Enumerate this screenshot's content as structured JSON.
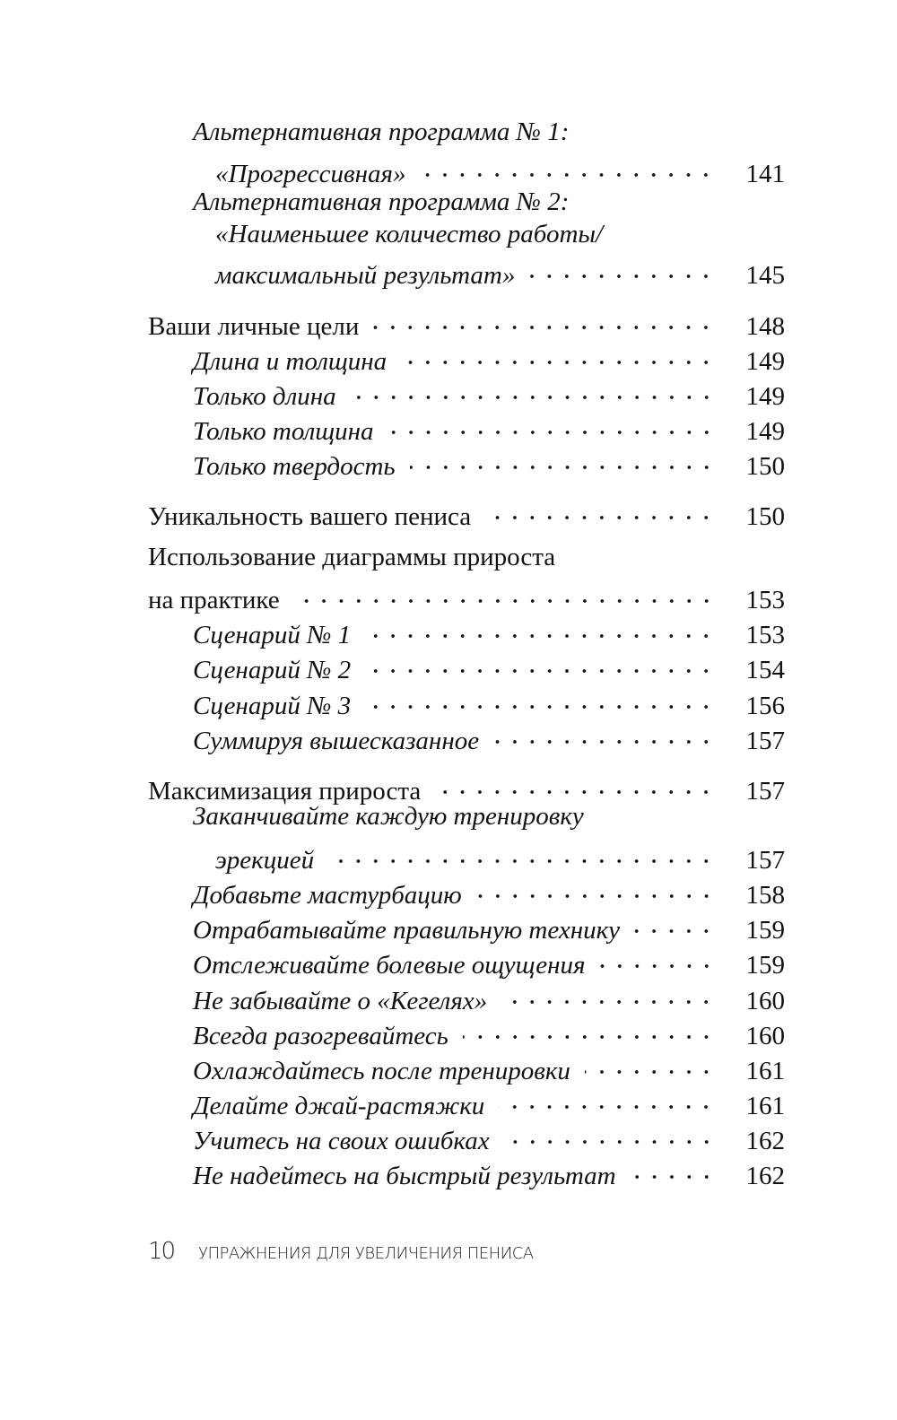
{
  "toc": [
    {
      "text": "Альтернативная программа № 1:",
      "level": 1
    },
    {
      "text": "«Прогрессивная»",
      "page": "141",
      "level": 2
    },
    {
      "text": "Альтернативная программа № 2:",
      "level": 1
    },
    {
      "text": "«Наименьшее количество работы/",
      "level": 2
    },
    {
      "text": "максимальный результат»",
      "page": "145",
      "level": 2
    },
    {
      "text": "Ваши личные цели",
      "page": "148",
      "level": 0
    },
    {
      "text": "Длина и толщина",
      "page": "149",
      "level": 1
    },
    {
      "text": "Только длина",
      "page": "149",
      "level": 1
    },
    {
      "text": "Только толщина",
      "page": "149",
      "level": 1
    },
    {
      "text": "Только твердость",
      "page": "150",
      "level": 1
    },
    {
      "text": "Уникальность вашего пениса",
      "page": "150",
      "level": 0
    },
    {
      "text": "Использование диаграммы прироста",
      "level": 0
    },
    {
      "text": "на практике",
      "page": "153",
      "level": 0
    },
    {
      "text": "Сценарий № 1",
      "page": "153",
      "level": 1
    },
    {
      "text": "Сценарий № 2",
      "page": "154",
      "level": 1
    },
    {
      "text": "Сценарий № 3",
      "page": "156",
      "level": 1
    },
    {
      "text": "Суммируя вышесказанное",
      "page": "157",
      "level": 1
    },
    {
      "text": "Максимизация прироста",
      "page": "157",
      "level": 0
    },
    {
      "text": "Заканчивайте каждую тренировку",
      "level": 1
    },
    {
      "text": "эрекцией",
      "page": "157",
      "level": 2
    },
    {
      "text": "Добавьте мастурбацию",
      "page": "158",
      "level": 1
    },
    {
      "text": "Отрабатывайте правильную технику",
      "page": "159",
      "level": 1
    },
    {
      "text": "Отслеживайте болевые ощущения",
      "page": "159",
      "level": 1
    },
    {
      "text": "Не забывайте о «Кегелях»",
      "page": "160",
      "level": 1
    },
    {
      "text": "Всегда разогревайтесь",
      "page": "160",
      "level": 1
    },
    {
      "text": "Охлаждайтесь после тренировки",
      "page": "161",
      "level": 1
    },
    {
      "text": "Делайте джай-растяжки",
      "page": "161",
      "level": 1
    },
    {
      "text": "Учитесь на своих ошибках",
      "page": "162",
      "level": 1
    },
    {
      "text": "Не надейтесь на быстрый результат",
      "page": "162",
      "level": 1
    }
  ],
  "footer": {
    "page_number": "10",
    "book_title": "УПРАЖНЕНИЯ ДЛЯ УВЕЛИЧЕНИЯ ПЕНИСА"
  }
}
